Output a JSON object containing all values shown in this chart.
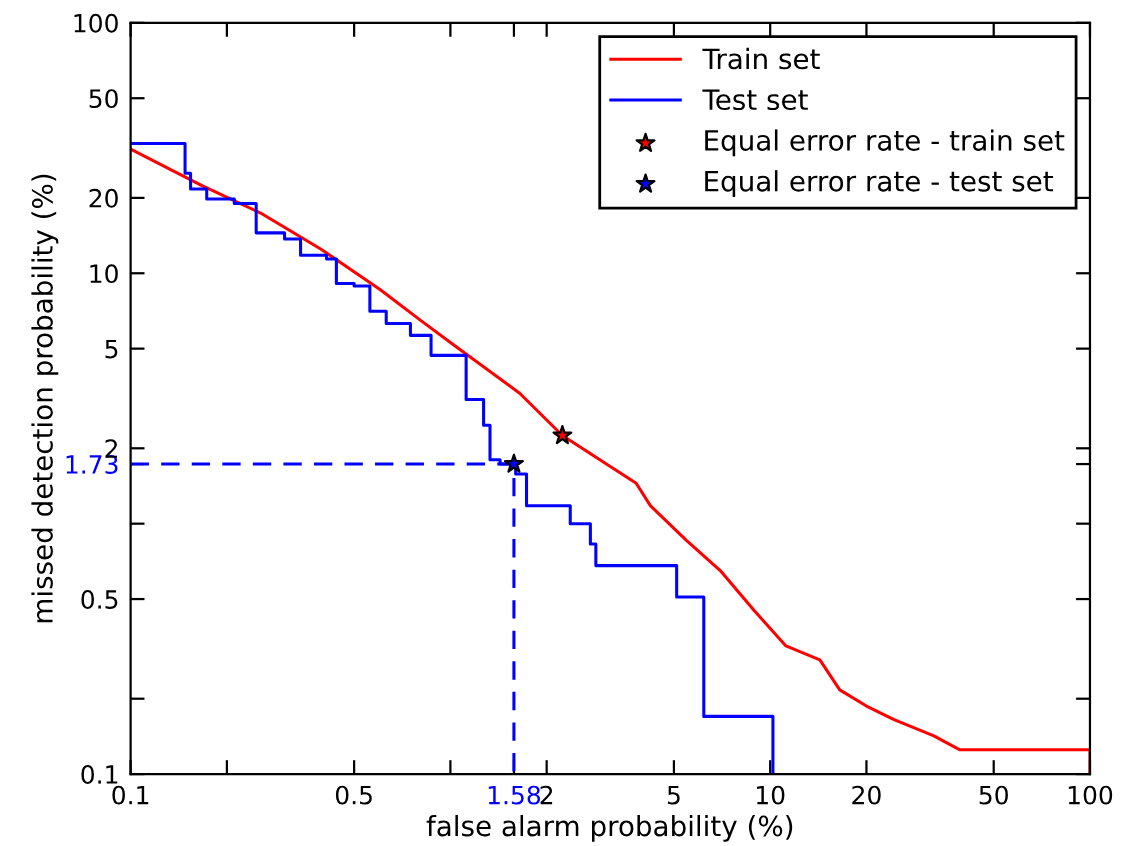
{
  "chart_data": {
    "type": "step",
    "xlabel": "false alarm probability (%)",
    "ylabel": "missed detection probability (%)",
    "log": "xy",
    "grid": false,
    "legend": "top right",
    "xlim": [
      0.1,
      100
    ],
    "ylim": [
      0.1,
      100
    ],
    "xticks": [
      0.1,
      {
        "value": 0.2,
        "label": null
      },
      0.5,
      {
        "value": 1,
        "label": null
      },
      {
        "value": 1.58,
        "label": "1.58"
      },
      2,
      5,
      10,
      20,
      50,
      100
    ],
    "yticks": [
      0.1,
      {
        "value": 0.2,
        "label": null
      },
      0.5,
      {
        "value": 1,
        "label": null
      },
      {
        "value": 1.73,
        "label": "1.73"
      },
      2,
      5,
      10,
      20,
      50,
      100
    ],
    "series": [
      {
        "name": "Train set",
        "type": "line",
        "color": "#ff0000",
        "x": [
          0.1,
          0.166,
          0.255,
          0.393,
          0.604,
          0.805,
          1.03,
          1.65,
          2.24,
          3.81,
          4.22,
          5.46,
          6.98,
          8.91,
          11.2,
          14.3,
          16.5,
          20,
          24.4,
          32.5,
          39.2,
          100,
          100
        ],
        "values": [
          31.3,
          22.5,
          17.4,
          12.5,
          8.6,
          6.5,
          5.15,
          3.31,
          2.25,
          1.45,
          1.18,
          0.86,
          0.65,
          0.45,
          0.325,
          0.286,
          0.217,
          0.187,
          0.165,
          0.142,
          0.125,
          0.125,
          0.1
        ]
      },
      {
        "name": "Test set",
        "color": "#0000ff",
        "x": [
          0.1,
          0.148,
          0.154,
          0.173,
          0.211,
          0.247,
          0.303,
          0.34,
          0.41,
          0.44,
          0.5,
          0.56,
          0.63,
          0.75,
          0.87,
          1.03,
          1.12,
          1.27,
          1.33,
          1.43,
          1.58,
          1.6,
          1.73,
          2.3,
          2.37,
          2.66,
          2.74,
          2.85,
          5.0,
          5.1,
          5.78,
          6.2,
          10.2,
          10.2
        ],
        "values": [
          33,
          25.1,
          21.7,
          19.8,
          19,
          14.5,
          13.7,
          11.8,
          11.4,
          9.1,
          8.9,
          7.05,
          6.3,
          5.65,
          4.7,
          4.7,
          3.13,
          2.47,
          1.8,
          1.73,
          1.73,
          1.58,
          1.18,
          1.18,
          1.0,
          1.0,
          0.83,
          0.68,
          0.68,
          0.51,
          0.51,
          0.17,
          0.17,
          0.1
        ]
      },
      {
        "name": "Equal error rate - train set",
        "type": "scatter",
        "marker": "star",
        "color": "#ff0000",
        "x": [
          2.24
        ],
        "values": [
          2.25
        ]
      },
      {
        "name": "Equal error rate - test set",
        "type": "scatter",
        "marker": "star",
        "color": "#0000ff",
        "x": [
          1.58
        ],
        "values": [
          1.73
        ]
      },
      {
        "type": "line",
        "line_style": "dashed",
        "color": "#0000ff",
        "x": [
          0.1,
          1.58,
          1.58
        ],
        "values": [
          1.73,
          1.73,
          0.1
        ]
      }
    ]
  }
}
